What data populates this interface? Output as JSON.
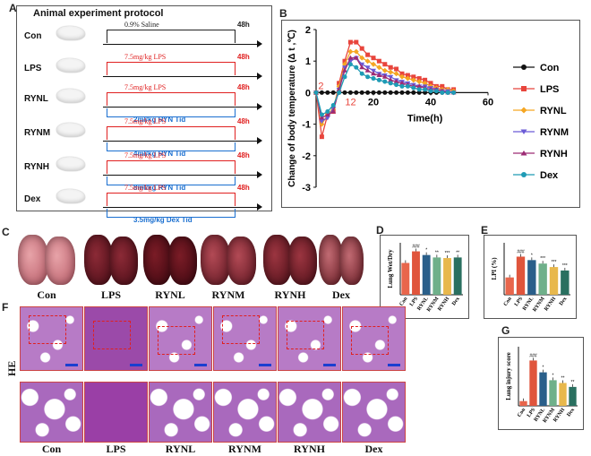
{
  "panels": {
    "a": "A",
    "b": "B",
    "c": "C",
    "d": "D",
    "e": "E",
    "f": "F",
    "g": "G"
  },
  "protocol": {
    "title": "Animal experiment protocol",
    "groups": [
      {
        "name": "Con",
        "lines": [
          {
            "text": "0.9% Saline",
            "color": "#222"
          }
        ],
        "duration": "48h",
        "duration_color": "#222"
      },
      {
        "name": "LPS",
        "lines": [
          {
            "text": "7.5mg/kg LPS",
            "color": "#e02020"
          }
        ],
        "duration": "48h",
        "duration_color": "#e02020"
      },
      {
        "name": "RYNL",
        "lines": [
          {
            "text": "7.5mg/kg LPS",
            "color": "#e02020"
          },
          {
            "text": "2ml/kg RYN Tid",
            "color": "#1a6fd0"
          }
        ],
        "duration": "48h",
        "duration_color": "#e02020"
      },
      {
        "name": "RYNM",
        "lines": [
          {
            "text": "7.5mg/kg LPS",
            "color": "#e02020"
          },
          {
            "text": "4ml/kg RYN  Tid",
            "color": "#1a6fd0"
          }
        ],
        "duration": "48h",
        "duration_color": "#e02020"
      },
      {
        "name": "RYNH",
        "lines": [
          {
            "text": "7.5mg/kg LPS",
            "color": "#e02020"
          },
          {
            "text": "8ml/kg  RYN  Tid",
            "color": "#1a6fd0"
          }
        ],
        "duration": "48h",
        "duration_color": "#e02020"
      },
      {
        "name": "Dex",
        "lines": [
          {
            "text": "7.5mg/kg LPS",
            "color": "#e02020"
          },
          {
            "text": "3.5mg/kg Dex  Tid",
            "color": "#1a6fd0"
          }
        ],
        "duration": "48h",
        "duration_color": "#e02020"
      }
    ]
  },
  "temp_chart": {
    "ylabel": "Change of body temperature (Δ t ,℃)",
    "xlabel": "Time(h)",
    "marks": [
      "2",
      "12"
    ]
  },
  "chart_data": [
    {
      "type": "line",
      "id": "temperature",
      "xlabel": "Time(h)",
      "ylabel": "Change of body temperature (Δ t ,℃)",
      "xlim": [
        0,
        60
      ],
      "ylim": [
        -3,
        2
      ],
      "xticks": [
        20,
        40,
        60
      ],
      "yticks": [
        -3,
        -2,
        -1,
        0,
        1,
        2
      ],
      "legend_position": "right",
      "x": [
        0,
        2,
        4,
        6,
        8,
        10,
        12,
        14,
        16,
        18,
        20,
        22,
        24,
        26,
        28,
        30,
        32,
        34,
        36,
        38,
        40,
        42,
        44,
        46,
        48
      ],
      "series": [
        {
          "name": "Con",
          "color": "#111111",
          "marker": "circle",
          "values": [
            0,
            0,
            0,
            0,
            0,
            0,
            0,
            0,
            0,
            0,
            0,
            0,
            0,
            0,
            0,
            0,
            0,
            0,
            0,
            0,
            0,
            0,
            0,
            0,
            0
          ]
        },
        {
          "name": "LPS",
          "color": "#e8453c",
          "marker": "square",
          "values": [
            0,
            -1.4,
            -0.7,
            -0.6,
            0.3,
            1.0,
            1.6,
            1.6,
            1.4,
            1.2,
            1.1,
            1.0,
            0.9,
            0.8,
            0.75,
            0.6,
            0.55,
            0.5,
            0.45,
            0.4,
            0.3,
            0.2,
            0.2,
            0.1,
            0.1
          ]
        },
        {
          "name": "RYNL",
          "color": "#f5a623",
          "marker": "diamond",
          "values": [
            0,
            -1.0,
            -0.7,
            -0.5,
            0.2,
            0.9,
            1.3,
            1.3,
            1.1,
            1.0,
            0.9,
            0.8,
            0.7,
            0.65,
            0.6,
            0.5,
            0.45,
            0.4,
            0.35,
            0.3,
            0.2,
            0.15,
            0.1,
            0.1,
            0.05
          ]
        },
        {
          "name": "RYNM",
          "color": "#6b5bd6",
          "marker": "triangle-down",
          "values": [
            0,
            -0.9,
            -0.8,
            -0.5,
            0.1,
            0.8,
            1.0,
            1.1,
            0.9,
            0.8,
            0.7,
            0.6,
            0.55,
            0.5,
            0.4,
            0.35,
            0.3,
            0.25,
            0.2,
            0.2,
            0.15,
            0.1,
            0.05,
            0.05,
            0
          ]
        },
        {
          "name": "RYNH",
          "color": "#9c2b74",
          "marker": "triangle-up",
          "values": [
            0,
            -0.8,
            -0.7,
            -0.6,
            0.1,
            0.7,
            1.1,
            1.1,
            0.8,
            0.7,
            0.6,
            0.55,
            0.5,
            0.4,
            0.35,
            0.3,
            0.25,
            0.2,
            0.2,
            0.15,
            0.1,
            0.1,
            0.05,
            0,
            0
          ]
        },
        {
          "name": "Dex",
          "color": "#1f9bb5",
          "marker": "circle",
          "values": [
            0,
            -0.7,
            -0.6,
            -0.4,
            0.0,
            0.5,
            0.9,
            0.8,
            0.6,
            0.5,
            0.45,
            0.4,
            0.35,
            0.3,
            0.25,
            0.2,
            0.2,
            0.15,
            0.1,
            0.1,
            0.05,
            0.05,
            0,
            0,
            0
          ]
        }
      ]
    },
    {
      "type": "bar",
      "id": "lung_wet_dry",
      "ylabel": "Lung Wet/Dry",
      "categories": [
        "Con",
        "LPS",
        "RYNL",
        "RYNM",
        "RYNH",
        "Dex"
      ],
      "values": [
        5.2,
        7.1,
        6.5,
        6.1,
        6.0,
        6.1
      ],
      "ylim": [
        0,
        8.5
      ],
      "colors": [
        "#e8664c",
        "#e0553c",
        "#2a5f8a",
        "#6fb08a",
        "#e8b84c",
        "#2a7060"
      ],
      "significance": [
        "",
        "###",
        "*",
        "**",
        "***",
        "**"
      ]
    },
    {
      "type": "bar",
      "id": "lpi",
      "ylabel": "LPI (%)",
      "categories": [
        "Con",
        "LPS",
        "RYNL",
        "RYNM",
        "RYNH",
        "Dex"
      ],
      "values": [
        0.1,
        0.22,
        0.2,
        0.18,
        0.16,
        0.14
      ],
      "ylim": [
        0,
        0.3
      ],
      "colors": [
        "#e8664c",
        "#e0553c",
        "#2a5f8a",
        "#6fb08a",
        "#e8b84c",
        "#2a7060"
      ],
      "significance": [
        "",
        "###",
        "*",
        "***",
        "***",
        "***"
      ]
    },
    {
      "type": "bar",
      "id": "lung_injury",
      "ylabel": "Lung injury score",
      "categories": [
        "Con",
        "LPS",
        "RYNL",
        "RYNM",
        "RYNH",
        "Dex"
      ],
      "values": [
        1.2,
        11.5,
        8.5,
        6.5,
        5.8,
        4.8
      ],
      "ylim": [
        0,
        15
      ],
      "colors": [
        "#e8664c",
        "#e0553c",
        "#2a5f8a",
        "#6fb08a",
        "#e8b84c",
        "#2a7060"
      ],
      "significance": [
        "",
        "###",
        "*",
        "*",
        "**",
        "**"
      ]
    }
  ],
  "lungs": {
    "labels": [
      "Con",
      "LPS",
      "RYNL",
      "RYNM",
      "RYNH",
      "Dex"
    ]
  },
  "histology": {
    "row_label": "HE",
    "labels": [
      "Con",
      "LPS",
      "RYNL",
      "RYNM",
      "RYNH",
      "Dex"
    ]
  }
}
